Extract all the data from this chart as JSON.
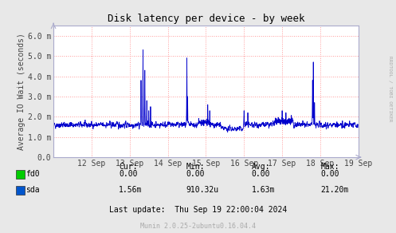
{
  "title": "Disk latency per device - by week",
  "ylabel": "Average IO Wait (seconds)",
  "ytick_labels": [
    "0.0",
    "1.0 m",
    "2.0 m",
    "3.0 m",
    "4.0 m",
    "5.0 m",
    "6.0 m"
  ],
  "xtick_labels": [
    "12 Sep",
    "13 Sep",
    "14 Sep",
    "15 Sep",
    "16 Sep",
    "17 Sep",
    "18 Sep",
    "19 Sep"
  ],
  "ylim": [
    0.0,
    0.0065
  ],
  "bg_color": "#e8e8e8",
  "plot_bg_color": "#ffffff",
  "grid_color": "#ff9999",
  "line_color_sda": "#0000cc",
  "legend_fd0_color": "#00cc00",
  "legend_sda_color": "#0055cc",
  "footer_text": "Last update:  Thu Sep 19 22:00:04 2024",
  "munin_text": "Munin 2.0.25-2ubuntu0.16.04.4",
  "rrdtool_text": "RRDTOOL / TOBI OETIKER",
  "cur_fd0": "0.00",
  "min_fd0": "0.00",
  "avg_fd0": "0.00",
  "max_fd0": "0.00",
  "cur_sda": "1.56m",
  "min_sda": "910.32u",
  "avg_sda": "1.63m",
  "max_sda": "21.20m",
  "n_points": 2016,
  "baseline": 0.0016,
  "noise_std": 0.00013
}
